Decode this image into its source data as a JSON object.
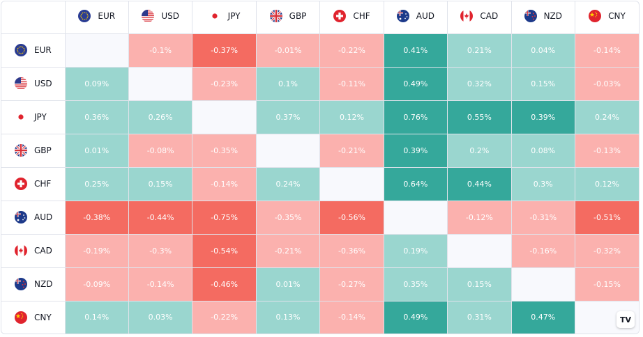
{
  "chart_data": {
    "type": "heatmap",
    "title": "",
    "currencies": [
      "EUR",
      "USD",
      "JPY",
      "GBP",
      "CHF",
      "AUD",
      "CAD",
      "NZD",
      "CNY"
    ],
    "rows": [
      "EUR",
      "USD",
      "JPY",
      "GBP",
      "CHF",
      "AUD",
      "CAD",
      "NZD",
      "CNY"
    ],
    "values": [
      [
        null,
        "-0.1%",
        "-0.37%",
        "-0.01%",
        "-0.22%",
        "0.41%",
        "0.21%",
        "0.04%",
        "-0.14%"
      ],
      [
        "0.09%",
        null,
        "-0.23%",
        "0.1%",
        "-0.11%",
        "0.49%",
        "0.32%",
        "0.15%",
        "-0.03%"
      ],
      [
        "0.36%",
        "0.26%",
        null,
        "0.37%",
        "0.12%",
        "0.76%",
        "0.55%",
        "0.39%",
        "0.24%"
      ],
      [
        "0.01%",
        "-0.08%",
        "-0.35%",
        null,
        "-0.21%",
        "0.39%",
        "0.2%",
        "0.08%",
        "-0.13%"
      ],
      [
        "0.25%",
        "0.15%",
        "-0.14%",
        "0.24%",
        null,
        "0.64%",
        "0.44%",
        "0.3%",
        "0.12%"
      ],
      [
        "-0.38%",
        "-0.44%",
        "-0.75%",
        "-0.35%",
        "-0.56%",
        null,
        "-0.12%",
        "-0.31%",
        "-0.51%"
      ],
      [
        "-0.19%",
        "-0.3%",
        "-0.54%",
        "-0.21%",
        "-0.36%",
        "0.19%",
        null,
        "-0.16%",
        "-0.32%"
      ],
      [
        "-0.09%",
        "-0.14%",
        "-0.46%",
        "0.01%",
        "-0.27%",
        "0.35%",
        "0.15%",
        null,
        "-0.15%"
      ],
      [
        "0.14%",
        "0.03%",
        "-0.22%",
        "0.13%",
        "-0.14%",
        "0.49%",
        "0.31%",
        "0.47%",
        null
      ]
    ],
    "colors": {
      "positive_light": "#9ad6cf",
      "positive_strong": "#35a89b",
      "negative_light": "#fbb1ae",
      "negative_strong": "#f46b61",
      "diagonal": "#f8f9fd"
    },
    "thresholds": {
      "strong_positive": 0.38,
      "strong_negative": -0.37
    }
  },
  "flags": {
    "EUR": "eu-flag-icon",
    "USD": "us-flag-icon",
    "JPY": "jp-flag-icon",
    "GBP": "gb-flag-icon",
    "CHF": "ch-flag-icon",
    "AUD": "au-flag-icon",
    "CAD": "ca-flag-icon",
    "NZD": "nz-flag-icon",
    "CNY": "cn-flag-icon"
  },
  "logo": {
    "text": "TV",
    "icon": "tradingview-logo-icon"
  }
}
